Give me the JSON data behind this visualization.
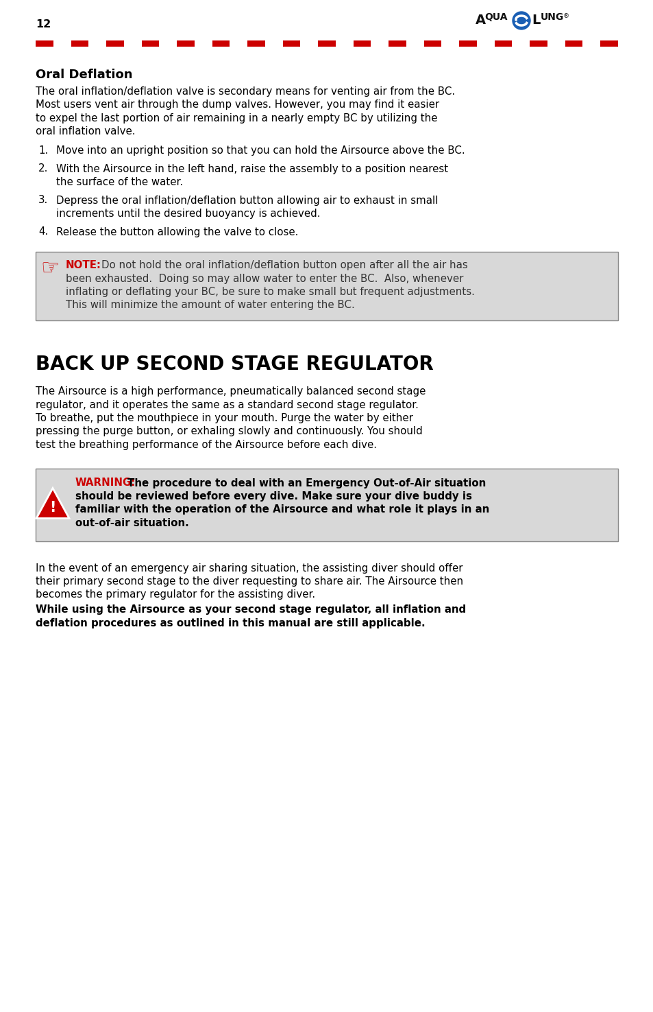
{
  "page_num": "12",
  "bg_color": "#ffffff",
  "section1_title": "Oral Deflation",
  "section1_body_lines": [
    "The oral inflation/deflation valve is secondary means for venting air from the BC.",
    "Most users vent air through the dump valves. However, you may find it easier",
    "to expel the last portion of air remaining in a nearly empty BC by utilizing the",
    "oral inflation valve."
  ],
  "section1_items": [
    [
      "Move into an upright position so that you can hold the Airsource above the BC."
    ],
    [
      "With the Airsource in the left hand, raise the assembly to a position nearest",
      "the surface of the water."
    ],
    [
      "Depress the oral inflation/deflation button allowing air to exhaust in small",
      "increments until the desired buoyancy is achieved."
    ],
    [
      "Release the button allowing the valve to close."
    ]
  ],
  "note_label": "NOTE:",
  "note_line1_after_label": "Do not hold the oral inflation/deflation button open after all the air has",
  "note_lines": [
    "been exhausted.  Doing so may allow water to enter the BC.  Also, whenever",
    "inflating or deflating your BC, be sure to make small but frequent adjustments.",
    "This will minimize the amount of water entering the BC."
  ],
  "section2_title": "BACK UP SECOND STAGE REGULATOR",
  "section2_body_lines": [
    "The Airsource is a high performance, pneumatically balanced second stage",
    "regulator, and it operates the same as a standard second stage regulator.",
    "To breathe, put the mouthpiece in your mouth. Purge the water by either",
    "pressing the purge button, or exhaling slowly and continuously. You should",
    "test the breathing performance of the Airsource before each dive."
  ],
  "warning_label": "WARNING:",
  "warning_line1_after_label": "The procedure to deal with an Emergency Out-of-Air situation",
  "warning_lines": [
    "should be reviewed before every dive. Make sure your dive buddy is",
    "familiar with the operation of the Airsource and what role it plays in an",
    "out-of-air situation."
  ],
  "closing_lines": [
    "In the event of an emergency air sharing situation, the assisting diver should offer",
    "their primary second stage to the diver requesting to share air. The Airsource then",
    "becomes the primary regulator for the assisting diver."
  ],
  "bold_closing_lines": [
    "While using the Airsource as your second stage regulator, all inflation and",
    "deflation procedures as outlined in this manual are still applicable."
  ],
  "stripe_colors": [
    "#cc0000",
    "#ffffff",
    "#cc0000",
    "#ffffff",
    "#cc0000",
    "#ffffff",
    "#cc0000",
    "#ffffff",
    "#cc0000",
    "#ffffff",
    "#cc0000",
    "#ffffff",
    "#cc0000",
    "#ffffff",
    "#cc0000",
    "#ffffff",
    "#cc0000",
    "#ffffff",
    "#cc0000",
    "#ffffff",
    "#cc0000",
    "#ffffff",
    "#cc0000",
    "#ffffff",
    "#cc0000",
    "#ffffff",
    "#cc0000",
    "#ffffff",
    "#cc0000",
    "#ffffff",
    "#cc0000",
    "#ffffff",
    "#cc0000"
  ]
}
